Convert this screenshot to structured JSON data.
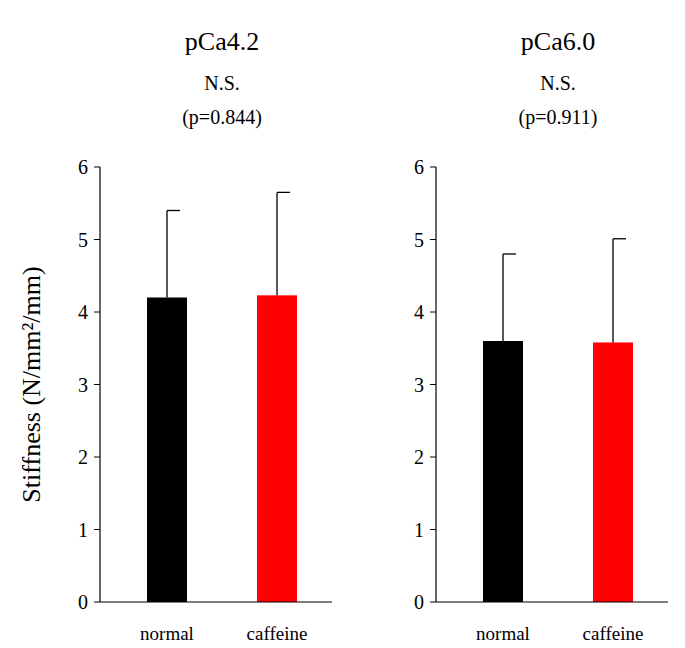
{
  "chart_data": [
    {
      "type": "bar",
      "title": "pCa4.2",
      "subtitle": "N.S.",
      "annotation": "(p=0.844)",
      "y_label": "Stiffness (N/mm²/mm)",
      "categories": [
        "normal",
        "caffeine"
      ],
      "values": [
        4.2,
        4.23
      ],
      "errors": [
        1.2,
        1.42
      ],
      "colors": [
        "#000000",
        "#ff0000"
      ],
      "ylim": [
        0,
        6
      ],
      "yticks": [
        0,
        1,
        2,
        3,
        4,
        5,
        6
      ]
    },
    {
      "type": "bar",
      "title": "pCa6.0",
      "subtitle": "N.S.",
      "annotation": "(p=0.911)",
      "categories": [
        "normal",
        "caffeine"
      ],
      "values": [
        3.6,
        3.58
      ],
      "errors": [
        1.2,
        1.43
      ],
      "colors": [
        "#000000",
        "#ff0000"
      ],
      "ylim": [
        0,
        6
      ],
      "yticks": [
        0,
        1,
        2,
        3,
        4,
        5,
        6
      ]
    }
  ]
}
